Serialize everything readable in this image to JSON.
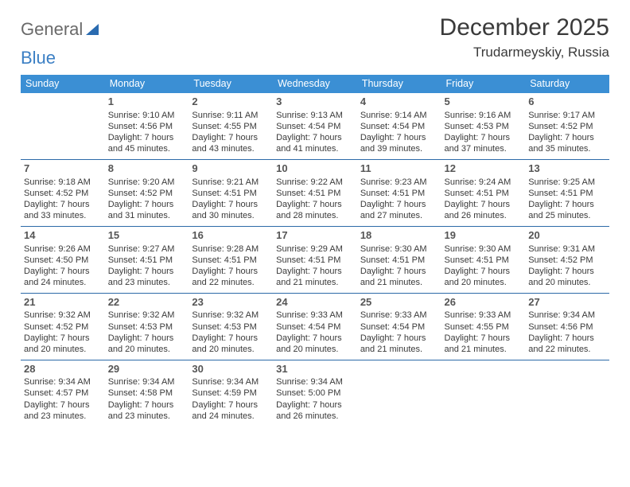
{
  "logo": {
    "part1": "General",
    "part2": "Blue"
  },
  "title": "December 2025",
  "location": "Trudarmeyskiy, Russia",
  "colors": {
    "header_bg": "#3b8fd4",
    "header_text": "#ffffff",
    "row_divider": "#2c6aa8",
    "text": "#3a3a3a",
    "logo_gray": "#6a6a6a",
    "logo_blue": "#3b7fc4"
  },
  "dayHeaders": [
    "Sunday",
    "Monday",
    "Tuesday",
    "Wednesday",
    "Thursday",
    "Friday",
    "Saturday"
  ],
  "weeks": [
    [
      null,
      {
        "n": "1",
        "sr": "9:10 AM",
        "ss": "4:56 PM",
        "dl": "7 hours and 45 minutes."
      },
      {
        "n": "2",
        "sr": "9:11 AM",
        "ss": "4:55 PM",
        "dl": "7 hours and 43 minutes."
      },
      {
        "n": "3",
        "sr": "9:13 AM",
        "ss": "4:54 PM",
        "dl": "7 hours and 41 minutes."
      },
      {
        "n": "4",
        "sr": "9:14 AM",
        "ss": "4:54 PM",
        "dl": "7 hours and 39 minutes."
      },
      {
        "n": "5",
        "sr": "9:16 AM",
        "ss": "4:53 PM",
        "dl": "7 hours and 37 minutes."
      },
      {
        "n": "6",
        "sr": "9:17 AM",
        "ss": "4:52 PM",
        "dl": "7 hours and 35 minutes."
      }
    ],
    [
      {
        "n": "7",
        "sr": "9:18 AM",
        "ss": "4:52 PM",
        "dl": "7 hours and 33 minutes."
      },
      {
        "n": "8",
        "sr": "9:20 AM",
        "ss": "4:52 PM",
        "dl": "7 hours and 31 minutes."
      },
      {
        "n": "9",
        "sr": "9:21 AM",
        "ss": "4:51 PM",
        "dl": "7 hours and 30 minutes."
      },
      {
        "n": "10",
        "sr": "9:22 AM",
        "ss": "4:51 PM",
        "dl": "7 hours and 28 minutes."
      },
      {
        "n": "11",
        "sr": "9:23 AM",
        "ss": "4:51 PM",
        "dl": "7 hours and 27 minutes."
      },
      {
        "n": "12",
        "sr": "9:24 AM",
        "ss": "4:51 PM",
        "dl": "7 hours and 26 minutes."
      },
      {
        "n": "13",
        "sr": "9:25 AM",
        "ss": "4:51 PM",
        "dl": "7 hours and 25 minutes."
      }
    ],
    [
      {
        "n": "14",
        "sr": "9:26 AM",
        "ss": "4:50 PM",
        "dl": "7 hours and 24 minutes."
      },
      {
        "n": "15",
        "sr": "9:27 AM",
        "ss": "4:51 PM",
        "dl": "7 hours and 23 minutes."
      },
      {
        "n": "16",
        "sr": "9:28 AM",
        "ss": "4:51 PM",
        "dl": "7 hours and 22 minutes."
      },
      {
        "n": "17",
        "sr": "9:29 AM",
        "ss": "4:51 PM",
        "dl": "7 hours and 21 minutes."
      },
      {
        "n": "18",
        "sr": "9:30 AM",
        "ss": "4:51 PM",
        "dl": "7 hours and 21 minutes."
      },
      {
        "n": "19",
        "sr": "9:30 AM",
        "ss": "4:51 PM",
        "dl": "7 hours and 20 minutes."
      },
      {
        "n": "20",
        "sr": "9:31 AM",
        "ss": "4:52 PM",
        "dl": "7 hours and 20 minutes."
      }
    ],
    [
      {
        "n": "21",
        "sr": "9:32 AM",
        "ss": "4:52 PM",
        "dl": "7 hours and 20 minutes."
      },
      {
        "n": "22",
        "sr": "9:32 AM",
        "ss": "4:53 PM",
        "dl": "7 hours and 20 minutes."
      },
      {
        "n": "23",
        "sr": "9:32 AM",
        "ss": "4:53 PM",
        "dl": "7 hours and 20 minutes."
      },
      {
        "n": "24",
        "sr": "9:33 AM",
        "ss": "4:54 PM",
        "dl": "7 hours and 20 minutes."
      },
      {
        "n": "25",
        "sr": "9:33 AM",
        "ss": "4:54 PM",
        "dl": "7 hours and 21 minutes."
      },
      {
        "n": "26",
        "sr": "9:33 AM",
        "ss": "4:55 PM",
        "dl": "7 hours and 21 minutes."
      },
      {
        "n": "27",
        "sr": "9:34 AM",
        "ss": "4:56 PM",
        "dl": "7 hours and 22 minutes."
      }
    ],
    [
      {
        "n": "28",
        "sr": "9:34 AM",
        "ss": "4:57 PM",
        "dl": "7 hours and 23 minutes."
      },
      {
        "n": "29",
        "sr": "9:34 AM",
        "ss": "4:58 PM",
        "dl": "7 hours and 23 minutes."
      },
      {
        "n": "30",
        "sr": "9:34 AM",
        "ss": "4:59 PM",
        "dl": "7 hours and 24 minutes."
      },
      {
        "n": "31",
        "sr": "9:34 AM",
        "ss": "5:00 PM",
        "dl": "7 hours and 26 minutes."
      },
      null,
      null,
      null
    ]
  ],
  "labels": {
    "sunrise": "Sunrise: ",
    "sunset": "Sunset: ",
    "daylight": "Daylight: "
  }
}
